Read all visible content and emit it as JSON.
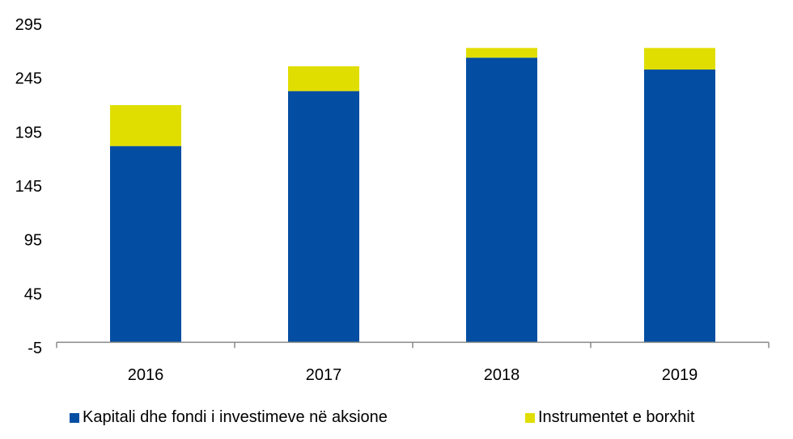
{
  "chart_data": {
    "type": "bar",
    "stacked": true,
    "categories": [
      "2016",
      "2017",
      "2018",
      "2019"
    ],
    "series": [
      {
        "name": "Kapitali dhe fondi i investimeve në aksione",
        "color": "#034EA2",
        "values": [
          182,
          233,
          264,
          253
        ]
      },
      {
        "name": "Instrumentet e borxhit",
        "color": "#E0DE00",
        "values": [
          38,
          23,
          9,
          20
        ]
      }
    ],
    "yticks": [
      -5,
      45,
      95,
      145,
      195,
      245,
      295
    ],
    "ylim": [
      -5,
      295
    ],
    "title": "",
    "xlabel": "",
    "ylabel": "",
    "grid": false,
    "legend_position": "bottom"
  }
}
